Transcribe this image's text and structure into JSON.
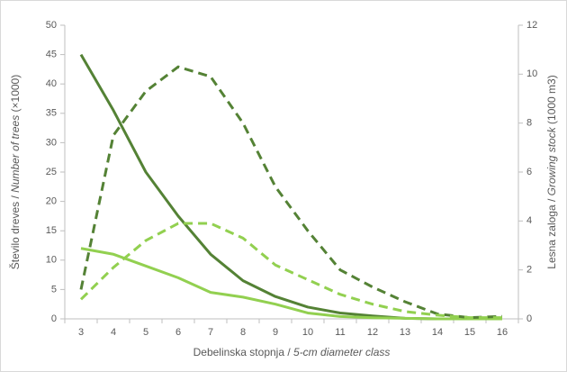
{
  "chart_data": {
    "type": "line",
    "x_label": [
      "Debelinska stopnja / ",
      "5-cm diameter class"
    ],
    "y_label": [
      "Število dreves / ",
      "Number of trees",
      " (×1000)"
    ],
    "y2_label": [
      "Lesna zaloga / ",
      "Growing stock",
      " (1000 m3)"
    ],
    "categories": [
      3,
      4,
      5,
      6,
      7,
      8,
      9,
      10,
      11,
      12,
      13,
      14,
      15,
      16
    ],
    "ylim": [
      0,
      50
    ],
    "yticks": [
      0,
      5,
      10,
      15,
      20,
      25,
      30,
      35,
      40,
      45,
      50
    ],
    "y2lim": [
      0,
      12
    ],
    "y2ticks": [
      0,
      2,
      4,
      6,
      8,
      10,
      12
    ],
    "series": [
      {
        "color": "#548235",
        "dash": false,
        "values": [
          45,
          35.5,
          25,
          17.5,
          11,
          6.5,
          3.8,
          2,
          1,
          0.5,
          0.1,
          0,
          0,
          0
        ]
      },
      {
        "color": "#92d050",
        "dash": false,
        "values": [
          12,
          11,
          9,
          7,
          4.5,
          3.7,
          2.5,
          1,
          0.4,
          0.2,
          0.1,
          0,
          0,
          0
        ]
      },
      {
        "color": "#548235",
        "dash": true,
        "axis": "y2",
        "values": [
          1.2,
          7.5,
          9.3,
          10.3,
          9.9,
          8,
          5.4,
          3.6,
          2,
          1.3,
          0.7,
          0.2,
          0.05,
          0.1
        ]
      },
      {
        "color": "#92d050",
        "dash": true,
        "axis": "y2",
        "values": [
          0.8,
          2.1,
          3.2,
          3.9,
          3.9,
          3.3,
          2.2,
          1.6,
          1,
          0.6,
          0.3,
          0.15,
          0.05,
          0.05
        ]
      }
    ]
  }
}
